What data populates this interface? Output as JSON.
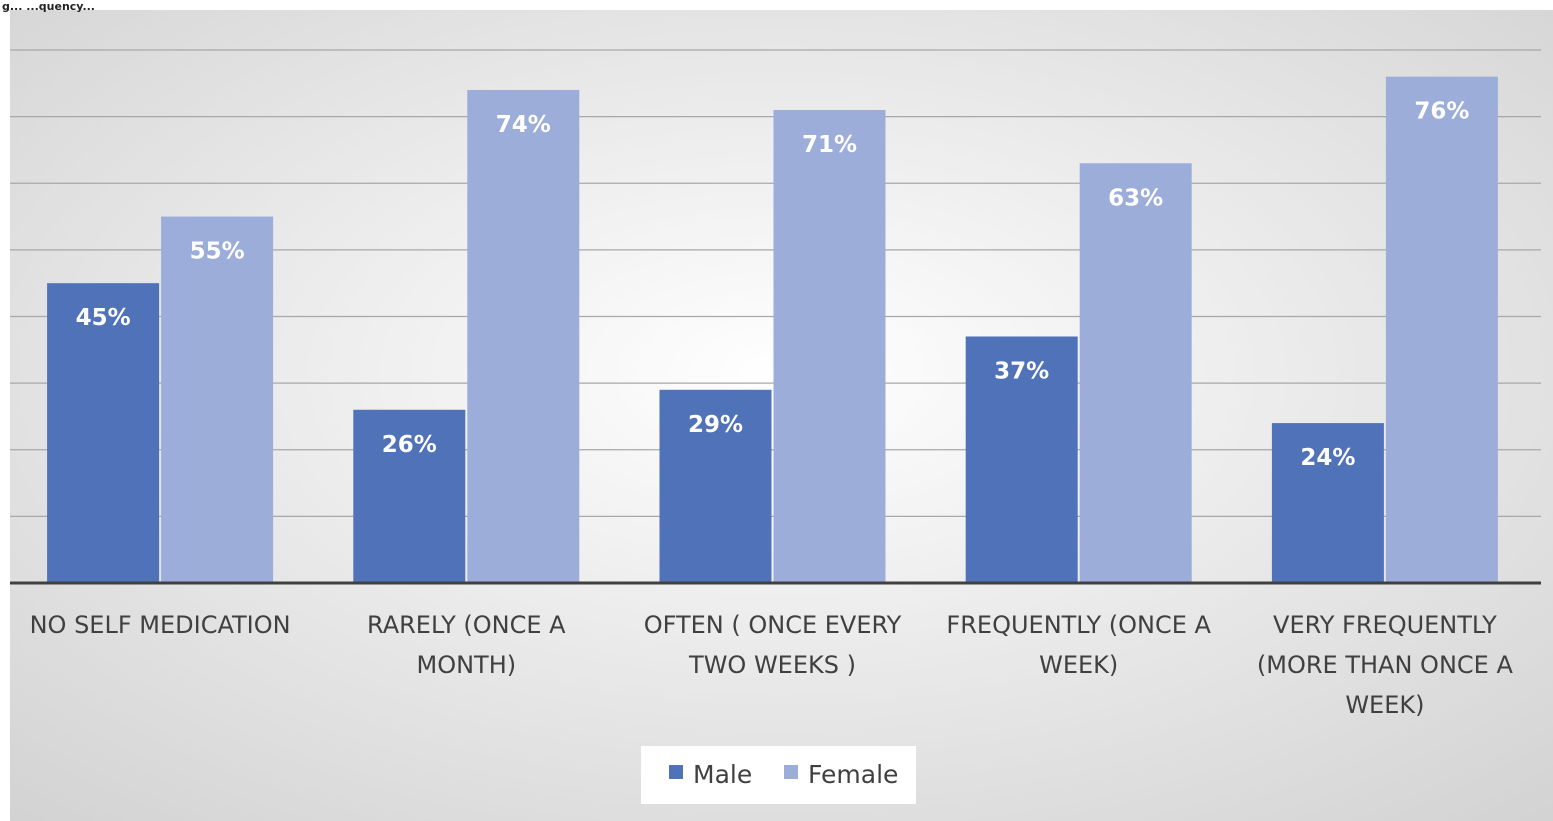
{
  "header_fragment": "g...  ...quency...",
  "chart_data": {
    "type": "bar",
    "categories": [
      "NO SELF MEDICATION",
      "RARELY (ONCE A MONTH)",
      "OFTEN ( ONCE EVERY TWO WEEKS )",
      "FREQUENTLY (ONCE A WEEK)",
      "VERY FREQUENTLY (MORE THAN ONCE A WEEK)"
    ],
    "category_label_lines": [
      [
        "NO SELF MEDICATION"
      ],
      [
        "RARELY (ONCE A",
        "MONTH)"
      ],
      [
        "OFTEN ( ONCE EVERY",
        "TWO WEEKS )"
      ],
      [
        "FREQUENTLY (ONCE A",
        "WEEK)"
      ],
      [
        "VERY FREQUENTLY",
        "(MORE THAN ONCE A",
        "WEEK)"
      ]
    ],
    "series": [
      {
        "name": "Male",
        "values": [
          45,
          26,
          29,
          37,
          24
        ],
        "labels": [
          "45%",
          "26%",
          "29%",
          "37%",
          "24%"
        ],
        "color": "#4f72b8"
      },
      {
        "name": "Female",
        "values": [
          55,
          74,
          71,
          63,
          76
        ],
        "labels": [
          "55%",
          "74%",
          "71%",
          "63%",
          "76%"
        ],
        "color": "#9dadd9"
      }
    ],
    "ylim": [
      0,
      80
    ],
    "y_axis_labels_shown": false,
    "grid": true,
    "legend_position": "bottom",
    "title": "",
    "xlabel": "",
    "ylabel": ""
  },
  "colors": {
    "male": "#4f72b8",
    "female": "#9dadd9",
    "axis": "#404040",
    "gridline": "#a8a8a8",
    "text": "#404040"
  }
}
